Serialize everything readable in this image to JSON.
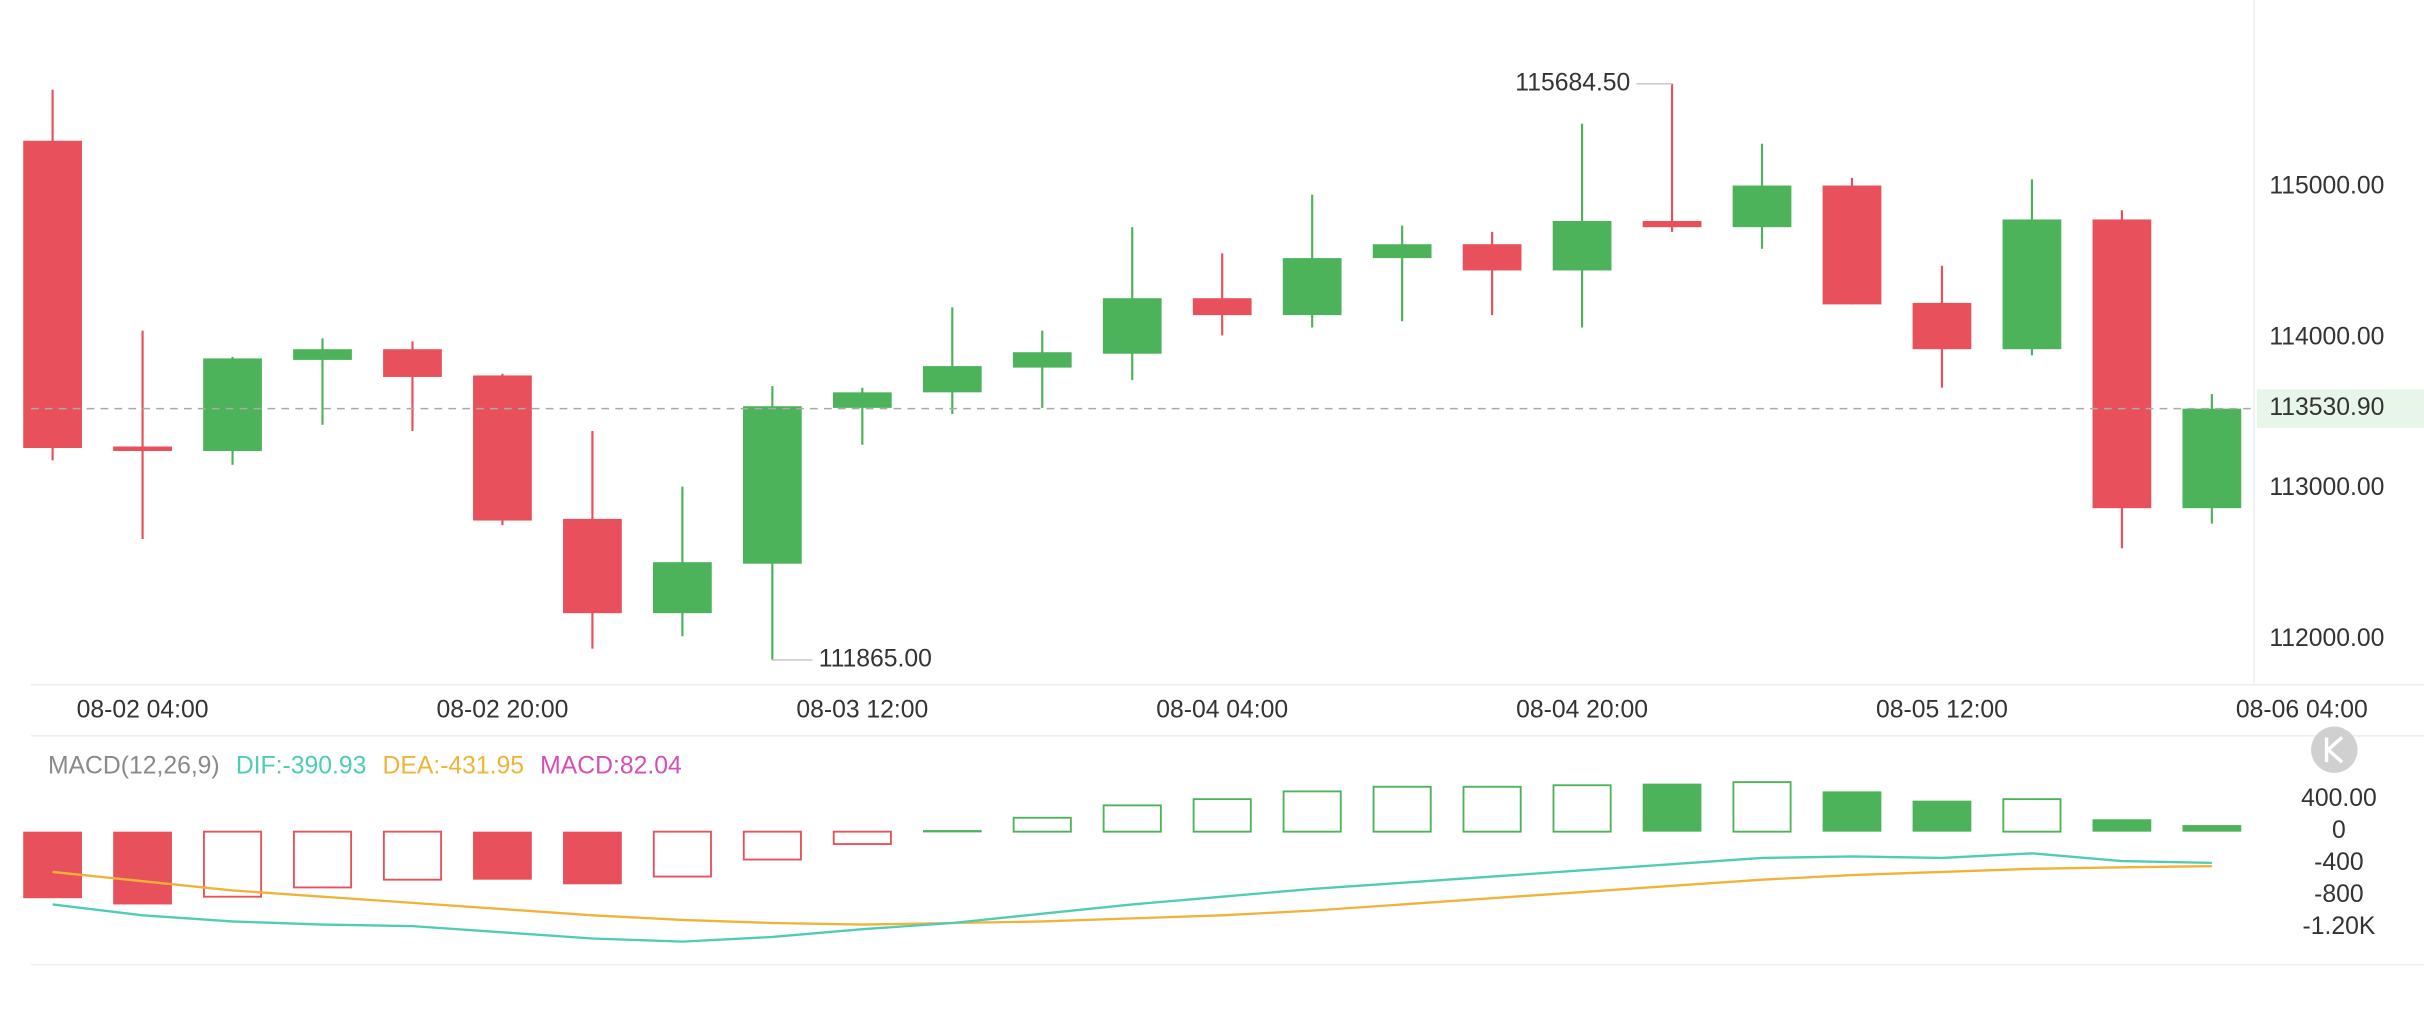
{
  "chart_data": {
    "type": "candlestick",
    "up_color": "#4cb35a",
    "down_color": "#e8505b",
    "xticks": [
      {
        "value": 1,
        "label": "08-02 04:00"
      },
      {
        "value": 5,
        "label": "08-02 20:00"
      },
      {
        "value": 9,
        "label": "08-03 12:00"
      },
      {
        "value": 13,
        "label": "08-04 04:00"
      },
      {
        "value": 17,
        "label": "08-04 20:00"
      },
      {
        "value": 21,
        "label": "08-05 12:00"
      },
      {
        "value": 25,
        "label": "08-06 04:00"
      }
    ],
    "open": [
      115307,
      113280,
      113250,
      113854,
      113925,
      113751,
      112800,
      112175,
      112503,
      113536,
      113639,
      113803,
      113895,
      114263,
      114151,
      114529,
      114621,
      114447,
      114775,
      114734,
      115010,
      114232,
      113925,
      114785,
      112871
    ],
    "high": [
      115645,
      114048,
      113874,
      113997,
      113977,
      113762,
      113383,
      113014,
      113680,
      113669,
      114202,
      114048,
      114734,
      114560,
      114949,
      114744,
      114703,
      115420,
      115684.5,
      115287,
      115061,
      114478,
      115051,
      114846,
      113628
    ],
    "low": [
      113188,
      112667,
      113158,
      113424,
      113383,
      112759,
      111940,
      112022,
      111865,
      113291,
      113495,
      113536,
      113720,
      114017,
      114069,
      114110,
      114151,
      114069,
      114703,
      114591,
      114222,
      113669,
      113884,
      112605,
      112769
    ],
    "close": [
      113270,
      113250,
      113864,
      113925,
      113741,
      112789,
      112175,
      112513,
      113547,
      113639,
      113813,
      113905,
      114263,
      114151,
      114529,
      114621,
      114447,
      114775,
      114734,
      115010,
      114222,
      113925,
      114785,
      112871,
      113530.9
    ],
    "ylim": [
      111700,
      116240
    ],
    "yticks": [
      {
        "value": 115000,
        "label": "115000.00"
      },
      {
        "value": 114000,
        "label": "114000.00"
      },
      {
        "value": 113000,
        "label": "113000.00"
      },
      {
        "value": 112000,
        "label": "112000.00"
      }
    ],
    "high_label": {
      "value": 115684.5,
      "label": "115684.50"
    },
    "low_label": {
      "value": 111865,
      "label": "111865.00"
    },
    "last_price": {
      "value": 113530.9,
      "label": "113530.90"
    },
    "macd": {
      "title": "MACD(12,26,9)",
      "dif_label": "DIF:-390.93",
      "dea_label": "DEA:-431.95",
      "macd_label": "MACD:82.04",
      "dif_color": "#4ecdb4",
      "dea_color": "#f0b33a",
      "macd_color": "#d44fb8",
      "title_color": "#8a8a8a",
      "values": [
        -833,
        -911,
        -814,
        -698,
        -601,
        -601,
        -659,
        -562,
        -349,
        -155,
        20,
        174,
        329,
        407,
        504,
        562,
        562,
        581,
        601,
        620,
        504,
        388,
        407,
        155,
        82.04
      ],
      "hollow": [
        false,
        false,
        true,
        true,
        true,
        false,
        false,
        true,
        true,
        true,
        false,
        true,
        true,
        true,
        true,
        true,
        true,
        true,
        false,
        true,
        false,
        false,
        true,
        false,
        false
      ],
      "dif": [
        -911,
        -1047,
        -1124,
        -1163,
        -1182,
        -1260,
        -1337,
        -1376,
        -1318,
        -1221,
        -1143,
        -1027,
        -911,
        -814,
        -717,
        -640,
        -562,
        -484,
        -407,
        -329,
        -310,
        -329,
        -271,
        -368,
        -390.93
      ],
      "dea": [
        -504,
        -620,
        -736,
        -814,
        -891,
        -969,
        -1047,
        -1105,
        -1143,
        -1163,
        -1143,
        -1124,
        -1085,
        -1047,
        -988,
        -911,
        -833,
        -756,
        -678,
        -601,
        -543,
        -504,
        -465,
        -446,
        -431.95
      ],
      "ylim": [
        -1490,
        735
      ],
      "yticks": [
        {
          "value": 400,
          "label": "400.00"
        },
        0,
        -400,
        -800,
        {
          "value": -1200,
          "label": "-1.20K"
        }
      ]
    }
  }
}
